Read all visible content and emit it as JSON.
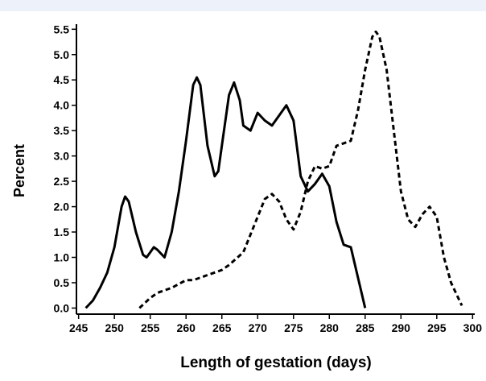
{
  "chart_data": {
    "type": "line",
    "x_label": "Length of gestation (days)",
    "y_label": "Percent",
    "xlim": [
      244.7,
      300.3
    ],
    "ylim": [
      -0.12,
      5.6
    ],
    "xticks": [
      245,
      250,
      255,
      260,
      265,
      270,
      275,
      280,
      285,
      290,
      295,
      300
    ],
    "yticks": [
      {
        "value": 0,
        "label": "0.0"
      },
      0.5,
      {
        "value": 1,
        "label": "1.0"
      },
      1.5,
      {
        "value": 2,
        "label": "2.0"
      },
      2.5,
      {
        "value": 3,
        "label": "3.0"
      },
      3.5,
      {
        "value": 4,
        "label": "4.0"
      },
      4.5,
      {
        "value": 5,
        "label": "5.0"
      },
      5.5
    ],
    "series": [
      {
        "color": "#000000",
        "dashed": false,
        "x": [
          246,
          247,
          248,
          249,
          250,
          251,
          251.5,
          252,
          253,
          254,
          254.5,
          255,
          255.5,
          256,
          257,
          258,
          259,
          260,
          261,
          261.5,
          262,
          263,
          264,
          264.5,
          265,
          266,
          266.7,
          267.5,
          268,
          269,
          270,
          271,
          272,
          273,
          274,
          275,
          276,
          277,
          278,
          279,
          280,
          281,
          282,
          283,
          284,
          285
        ],
        "values": [
          0,
          0.15,
          0.4,
          0.7,
          1.2,
          2.0,
          2.2,
          2.1,
          1.5,
          1.05,
          1.0,
          1.1,
          1.2,
          1.15,
          1.0,
          1.5,
          2.3,
          3.3,
          4.4,
          4.55,
          4.4,
          3.2,
          2.6,
          2.7,
          3.2,
          4.2,
          4.45,
          4.1,
          3.6,
          3.5,
          3.85,
          3.7,
          3.6,
          3.8,
          4.0,
          3.7,
          2.6,
          2.3,
          2.45,
          2.65,
          2.4,
          1.7,
          1.25,
          1.2,
          0.6,
          0.0
        ]
      },
      {
        "color": "#000000",
        "dashed": true,
        "x": [
          253.5,
          255,
          256,
          258,
          260,
          261,
          263,
          265,
          266,
          268,
          270,
          271,
          272,
          273,
          274,
          275,
          276,
          277,
          278,
          279,
          280,
          281,
          282,
          283,
          284,
          285,
          286,
          286.5,
          287,
          288,
          289,
          290,
          291,
          292,
          293,
          294,
          295,
          296,
          297,
          298,
          298.5
        ],
        "values": [
          0,
          0.2,
          0.3,
          0.4,
          0.55,
          0.55,
          0.65,
          0.75,
          0.85,
          1.1,
          1.8,
          2.15,
          2.25,
          2.1,
          1.75,
          1.55,
          1.9,
          2.5,
          2.8,
          2.75,
          2.8,
          3.2,
          3.25,
          3.3,
          3.9,
          4.7,
          5.35,
          5.45,
          5.35,
          4.7,
          3.5,
          2.3,
          1.75,
          1.6,
          1.85,
          2.0,
          1.8,
          1.0,
          0.5,
          0.2,
          0.05
        ]
      }
    ]
  }
}
